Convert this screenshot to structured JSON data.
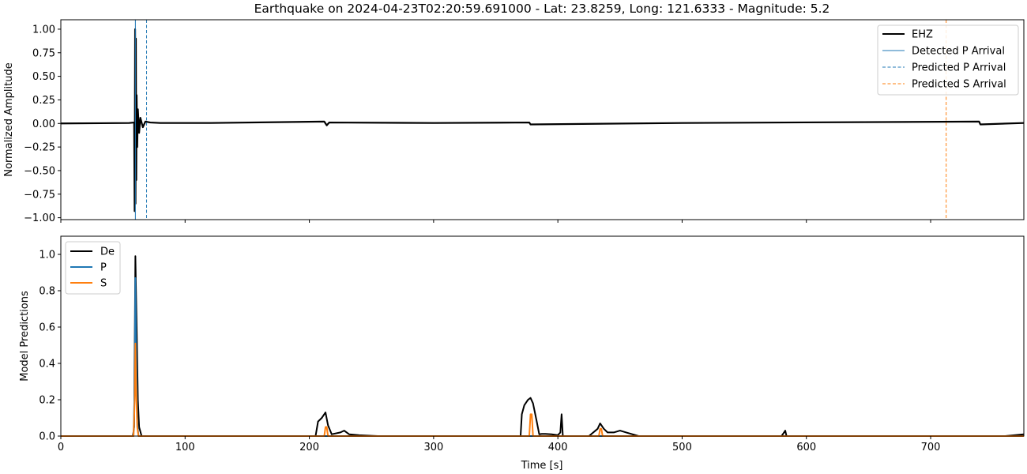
{
  "chart_data": [
    {
      "type": "line",
      "title": "Earthquake on 2024-04-23T02:20:59.691000 - Lat: 23.8259, Long: 121.6333 - Magnitude: 5.2",
      "xlabel": "",
      "ylabel": "Normalized Amplitude",
      "xlim": [
        0,
        775
      ],
      "ylim": [
        -1.02,
        1.1
      ],
      "yticks": [
        "1.00",
        "0.75",
        "0.50",
        "0.25",
        "0.00",
        "−0.25",
        "−0.50",
        "−0.75",
        "−1.00"
      ],
      "ytick_values": [
        1.0,
        0.75,
        0.5,
        0.25,
        0.0,
        -0.25,
        -0.5,
        -0.75,
        -1.0
      ],
      "grid": false,
      "legend": "top-right",
      "series": [
        {
          "name": "EHZ",
          "color": "#000000",
          "style": "solid",
          "x": [
            0,
            55,
            59,
            59.4,
            59.8,
            60.1,
            60.4,
            60.7,
            61,
            61.5,
            62,
            63,
            64,
            66,
            68,
            72,
            80,
            120,
            212,
            214,
            216,
            300,
            377,
            378,
            500,
            739,
            740,
            775
          ],
          "y": [
            0,
            0.005,
            0.01,
            -0.93,
            1.0,
            -0.85,
            0.9,
            -0.6,
            0.3,
            -0.25,
            0.15,
            -0.1,
            0.06,
            -0.04,
            0.02,
            0.01,
            0.005,
            0.005,
            0.02,
            -0.02,
            0.01,
            0.005,
            0.01,
            -0.01,
            0.005,
            0.02,
            -0.01,
            0.005
          ]
        },
        {
          "name": "Detected P Arrival",
          "color": "#1f77b4",
          "style": "solid",
          "x_marker": 60.0
        },
        {
          "name": "Predicted P Arrival",
          "color": "#1f77b4",
          "style": "dashed",
          "x_marker": 69.0
        },
        {
          "name": "Predicted S Arrival",
          "color": "#ff7f0e",
          "style": "dashed",
          "x_marker": 712.5
        }
      ]
    },
    {
      "type": "line",
      "title": "",
      "xlabel": "Time [s]",
      "ylabel": "Model Predictions",
      "xlim": [
        0,
        775
      ],
      "ylim": [
        0,
        1.1
      ],
      "xticks": [
        0,
        100,
        200,
        300,
        400,
        500,
        600,
        700
      ],
      "yticks": [
        0.0,
        0.2,
        0.4,
        0.6,
        0.8,
        1.0
      ],
      "grid": false,
      "legend": "top-left",
      "series": [
        {
          "name": "De",
          "color": "#000000",
          "x": [
            0,
            58,
            59,
            60,
            61,
            62,
            63,
            65,
            205,
            207,
            210,
            213,
            215,
            218,
            225,
            228,
            232,
            240,
            255,
            370,
            371,
            373,
            376,
            378,
            380,
            383,
            385,
            387,
            390,
            395,
            400,
            402,
            403,
            404,
            405,
            425,
            432,
            434,
            437,
            440,
            445,
            450,
            455,
            465,
            580,
            582,
            583,
            584,
            760,
            775
          ],
          "y": [
            0,
            0,
            0.05,
            0.99,
            0.6,
            0.2,
            0.05,
            0,
            0,
            0.08,
            0.1,
            0.13,
            0.06,
            0.01,
            0.02,
            0.03,
            0.01,
            0.005,
            0,
            0,
            0.12,
            0.17,
            0.2,
            0.21,
            0.18,
            0.08,
            0.01,
            0.012,
            0.012,
            0.01,
            0.005,
            0.02,
            0.12,
            0,
            0,
            0,
            0.04,
            0.07,
            0.04,
            0.02,
            0.02,
            0.03,
            0.02,
            0,
            0,
            0.02,
            0.03,
            0,
            0,
            0.01
          ]
        },
        {
          "name": "P",
          "color": "#1f77b4",
          "x": [
            0,
            58.5,
            59.5,
            60,
            60.5,
            61.5,
            62.5,
            775
          ],
          "y": [
            0,
            0,
            0.3,
            0.87,
            0.5,
            0.08,
            0,
            0
          ]
        },
        {
          "name": "S",
          "color": "#ff7f0e",
          "x": [
            0,
            58.5,
            59.5,
            60,
            60.5,
            61.5,
            62.5,
            212,
            213,
            214,
            215,
            377,
            378,
            379,
            380,
            433,
            434,
            435,
            436,
            775
          ],
          "y": [
            0,
            0,
            0.2,
            0.51,
            0.3,
            0.05,
            0,
            0,
            0.05,
            0.05,
            0,
            0,
            0.12,
            0.12,
            0,
            0,
            0.04,
            0.04,
            0,
            0
          ]
        }
      ]
    }
  ]
}
